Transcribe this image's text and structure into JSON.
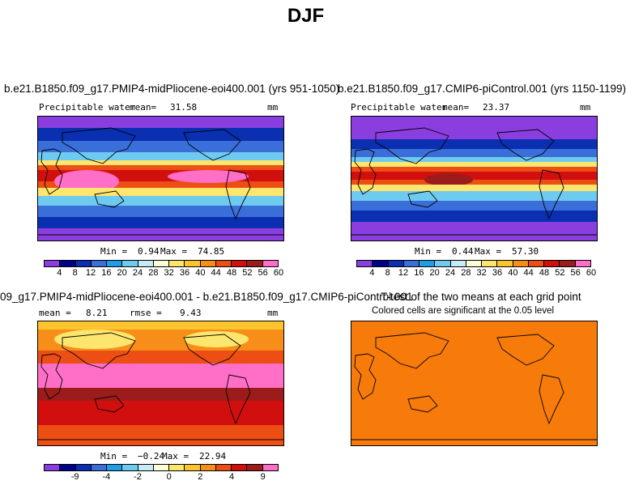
{
  "figure_title": "DJF",
  "chart_data": [
    {
      "type": "heatmap",
      "title": "b.e21.B1850.f09_g17.PMIP4-midPliocene-eoi400.001 (yrs 951-1050)",
      "variable": "Precipitable water",
      "mean_label": "mean=",
      "mean": "31.58",
      "units": "mm",
      "min_label": "Min =",
      "min": "0.94",
      "max_label": "Max =",
      "max": "74.85",
      "colorbar_ticks": [
        "4",
        "8",
        "12",
        "16",
        "20",
        "24",
        "28",
        "32",
        "36",
        "40",
        "44",
        "48",
        "52",
        "56",
        "60"
      ]
    },
    {
      "type": "heatmap",
      "title": "b.e21.B1850.f09_g17.CMIP6-piControl.001 (yrs 1150-1199)",
      "variable": "Precipitable water",
      "mean_label": "mean=",
      "mean": "23.37",
      "units": "mm",
      "min_label": "Min =",
      "min": "0.44",
      "max_label": "Max =",
      "max": "57.30",
      "colorbar_ticks": [
        "4",
        "8",
        "12",
        "16",
        "20",
        "24",
        "28",
        "32",
        "36",
        "40",
        "44",
        "48",
        "52",
        "56",
        "60"
      ]
    },
    {
      "type": "heatmap",
      "title": "09_g17.PMIP4-midPliocene-eoi400.001 - b.e21.B1850.f09_g17.CMIP6-piControl.001",
      "mean_label": "mean =",
      "mean": "8.21",
      "rmse_label": "rmse =",
      "rmse": "9.43",
      "units": "mm",
      "min_label": "Min =",
      "min": "−0.24",
      "max_label": "Max =",
      "max": "22.94",
      "colorbar_ticks": [
        "-9",
        "-4",
        "-2",
        "0",
        "2",
        "4",
        "9"
      ]
    },
    {
      "type": "heatmap",
      "title": "T-test of the two means at each grid point",
      "subtitle": "Colored cells are significant at the 0.05 level"
    }
  ],
  "colors": {
    "abs_scale": [
      "#8a3ee0",
      "#00008b",
      "#0a2fb0",
      "#3a6ed8",
      "#1e9ee6",
      "#6fcaf0",
      "#c6ecfc",
      "#fdfcd8",
      "#fde66e",
      "#fcc52e",
      "#f78e1a",
      "#ec4e14",
      "#d20f0f",
      "#9c1c1c",
      "#ff6ec7"
    ],
    "diff_scale": [
      "#8a3ee0",
      "#00008b",
      "#0a2fb0",
      "#3a6ed8",
      "#1e9ee6",
      "#6fcaf0",
      "#c6ecfc",
      "#fdfcd8",
      "#fde66e",
      "#fcc52e",
      "#f78e1a",
      "#ec4e14",
      "#d20f0f",
      "#9c1c1c",
      "#ff6ec7"
    ],
    "ttest_fill": "#f77b0a"
  }
}
